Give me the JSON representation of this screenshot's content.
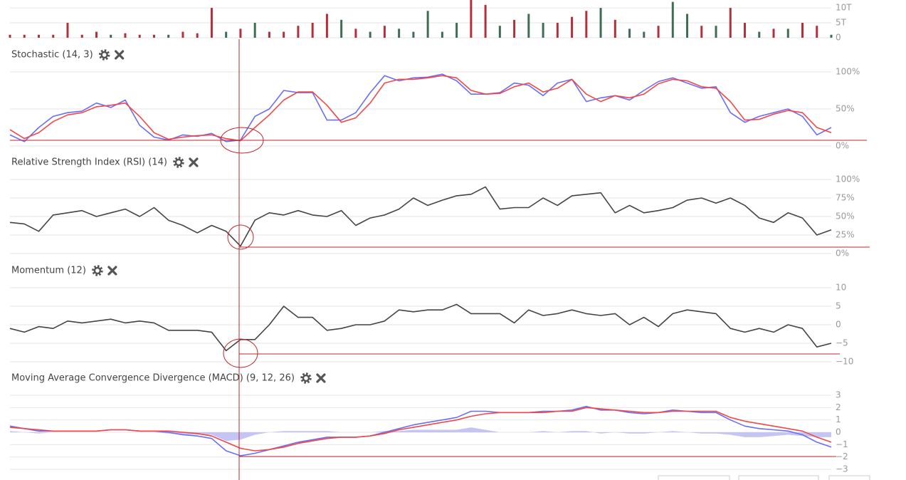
{
  "chart_data": [
    {
      "type": "bar",
      "ylim": [
        0,
        12.4
      ],
      "yticks": [
        {
          "value": 0,
          "label": "0"
        },
        {
          "value": 5,
          "label": "5T"
        },
        {
          "value": 10,
          "label": "10T"
        }
      ],
      "grid": true,
      "values": [
        1,
        1,
        1,
        1,
        5,
        1,
        2,
        1,
        1.5,
        1,
        1,
        1,
        2,
        1.5,
        10,
        2,
        3,
        5,
        2,
        2,
        4,
        5,
        8,
        6,
        3,
        2,
        4,
        3,
        2,
        9,
        2,
        5,
        13,
        11,
        4,
        6,
        8,
        5,
        5,
        7,
        9,
        10,
        6,
        3,
        2,
        4,
        12,
        8,
        4,
        4,
        10,
        5,
        2,
        3,
        3,
        5,
        4,
        1
      ],
      "colors": [
        "#b3303b",
        "#b3303b",
        "#b3303b",
        "#b3303b",
        "#b3303b",
        "#b3303b",
        "#b3303b",
        "#3d6e52",
        "#b3303b",
        "#b3303b",
        "#b3303b",
        "#3d6e52",
        "#b3303b",
        "#b3303b",
        "#b3303b",
        "#3d6e52",
        "#b3303b",
        "#3d6e52",
        "#b3303b",
        "#b3303b",
        "#b3303b",
        "#b3303b",
        "#b3303b",
        "#3d6e52",
        "#b3303b",
        "#3d6e52",
        "#b3303b",
        "#3d6e52",
        "#3d6e52",
        "#3d6e52",
        "#3d6e52",
        "#3d6e52",
        "#b3303b",
        "#b3303b",
        "#3d6e52",
        "#b3303b",
        "#3d6e52",
        "#3d6e52",
        "#b3303b",
        "#b3303b",
        "#b3303b",
        "#3d6e52",
        "#b3303b",
        "#3d6e52",
        "#3d6e52",
        "#b3303b",
        "#3d6e52",
        "#3d6e52",
        "#b3303b",
        "#3d6e52",
        "#b3303b",
        "#b3303b",
        "#3d6e52",
        "#b3303b",
        "#3d6e52",
        "#b3303b",
        "#b3303b",
        "#3d6e52"
      ]
    },
    {
      "type": "line",
      "title": "Stochastic (14, 3)",
      "ylim": [
        0,
        100
      ],
      "yticks": [
        {
          "value": 0,
          "label": "0%"
        },
        {
          "value": 50,
          "label": "50%"
        },
        {
          "value": 100,
          "label": "100%"
        }
      ],
      "grid": true,
      "series": [
        {
          "color": "#6b6ef5",
          "values": [
            15,
            6,
            25,
            40,
            45,
            47,
            58,
            52,
            62,
            28,
            12,
            8,
            15,
            13,
            17,
            6,
            8,
            40,
            50,
            75,
            72,
            72,
            35,
            35,
            45,
            72,
            95,
            88,
            92,
            93,
            97,
            88,
            70,
            70,
            72,
            85,
            82,
            68,
            85,
            90,
            60,
            65,
            68,
            62,
            75,
            87,
            92,
            85,
            78,
            80,
            45,
            32,
            40,
            45,
            50,
            40,
            15,
            25
          ]
        },
        {
          "color": "#f04848",
          "values": [
            22,
            10,
            18,
            33,
            42,
            45,
            53,
            55,
            58,
            40,
            18,
            9,
            12,
            14,
            15,
            10,
            7,
            25,
            42,
            62,
            73,
            73,
            55,
            32,
            38,
            58,
            85,
            90,
            90,
            92,
            95,
            92,
            75,
            70,
            71,
            80,
            85,
            73,
            78,
            90,
            70,
            60,
            68,
            65,
            70,
            84,
            90,
            88,
            80,
            78,
            60,
            35,
            36,
            43,
            48,
            45,
            25,
            18
          ]
        }
      ]
    },
    {
      "type": "line",
      "title": "Relative Strength Index (RSI) (14)",
      "ylim": [
        0,
        100
      ],
      "yticks": [
        {
          "value": 0,
          "label": "0%"
        },
        {
          "value": 25,
          "label": "25%"
        },
        {
          "value": 50,
          "label": "50%"
        },
        {
          "value": 75,
          "label": "75%"
        },
        {
          "value": 100,
          "label": "100%"
        }
      ],
      "grid": true,
      "series": [
        {
          "color": "#444444",
          "values": [
            42,
            40,
            30,
            52,
            55,
            58,
            50,
            55,
            60,
            50,
            62,
            45,
            38,
            28,
            38,
            30,
            10,
            45,
            55,
            52,
            58,
            52,
            50,
            58,
            38,
            48,
            52,
            60,
            75,
            65,
            72,
            78,
            80,
            90,
            60,
            62,
            62,
            75,
            65,
            78,
            80,
            82,
            55,
            65,
            55,
            58,
            62,
            72,
            75,
            68,
            75,
            65,
            48,
            42,
            55,
            48,
            25,
            32
          ]
        }
      ]
    },
    {
      "type": "line",
      "title": "Momentum (12)",
      "ylim": [
        -10,
        10
      ],
      "yticks": [
        {
          "value": -10,
          "label": "−10"
        },
        {
          "value": -5,
          "label": "−5"
        },
        0,
        5,
        10
      ],
      "grid": true,
      "series": [
        {
          "color": "#444444",
          "values": [
            -1,
            -2,
            -0.5,
            -1,
            1,
            0.5,
            1,
            1.5,
            0.5,
            1,
            0.5,
            -1.5,
            -1.5,
            -1.5,
            -2,
            -7,
            -4,
            -4,
            0,
            5,
            2,
            2,
            -1.5,
            -1,
            0,
            0,
            1,
            4,
            3.5,
            4,
            4,
            5.5,
            3,
            3,
            3,
            0.5,
            4,
            2.5,
            3,
            4,
            3,
            2.5,
            3,
            0,
            2,
            -0.5,
            3,
            4,
            3.5,
            3,
            -1,
            -2,
            -1,
            -2,
            0,
            -1,
            -6,
            -5
          ]
        }
      ]
    },
    {
      "type": "line",
      "title": "Moving Average Convergence Divergence (MACD) (9, 12, 26)",
      "ylim": [
        -3,
        3
      ],
      "yticks": [
        {
          "value": -3,
          "label": "−3"
        },
        {
          "value": -2,
          "label": "−2"
        },
        {
          "value": -1,
          "label": "−1"
        },
        0,
        1,
        2,
        3
      ],
      "grid": true,
      "series": [
        {
          "kind": "area",
          "color": "#c5c5f5",
          "values": [
            0.1,
            0,
            -0.1,
            0,
            0,
            0,
            0,
            0,
            0,
            0,
            0,
            -0.1,
            -0.2,
            -0.2,
            -0.2,
            -0.7,
            -0.6,
            -0.2,
            0,
            0.1,
            0.1,
            0.1,
            0.1,
            0,
            0,
            0,
            0.1,
            0.1,
            0.2,
            0.2,
            0.2,
            0.2,
            0.4,
            0.2,
            0,
            0,
            0,
            0.1,
            0,
            0.1,
            0.1,
            -0.1,
            0,
            -0.1,
            -0.1,
            0,
            0.1,
            0,
            -0.1,
            -0.1,
            -0.2,
            -0.4,
            -0.4,
            -0.3,
            -0.2,
            -0.3,
            -0.4,
            -0.4
          ]
        },
        {
          "color": "#6b6ef5",
          "values": [
            0.5,
            0.3,
            0.1,
            0.1,
            0.1,
            0.1,
            0.1,
            0.2,
            0.2,
            0.1,
            0.1,
            0,
            -0.2,
            -0.3,
            -0.5,
            -1.5,
            -1.9,
            -1.7,
            -1.4,
            -1.1,
            -0.8,
            -0.6,
            -0.4,
            -0.4,
            -0.4,
            -0.3,
            0,
            0.3,
            0.6,
            0.8,
            1,
            1.2,
            1.7,
            1.7,
            1.6,
            1.6,
            1.6,
            1.7,
            1.7,
            1.8,
            2.1,
            1.8,
            1.8,
            1.6,
            1.5,
            1.6,
            1.8,
            1.7,
            1.6,
            1.6,
            1,
            0.5,
            0.3,
            0.2,
            0.1,
            -0.2,
            -0.8,
            -1.2
          ]
        },
        {
          "color": "#f04848",
          "values": [
            0.4,
            0.3,
            0.2,
            0.1,
            0.1,
            0.1,
            0.1,
            0.2,
            0.2,
            0.1,
            0.1,
            0.1,
            0,
            -0.1,
            -0.3,
            -0.8,
            -1.3,
            -1.5,
            -1.4,
            -1.2,
            -0.9,
            -0.7,
            -0.5,
            -0.4,
            -0.4,
            -0.3,
            -0.1,
            0.2,
            0.4,
            0.6,
            0.8,
            1,
            1.3,
            1.5,
            1.6,
            1.6,
            1.6,
            1.6,
            1.7,
            1.7,
            2,
            1.9,
            1.8,
            1.7,
            1.6,
            1.6,
            1.7,
            1.7,
            1.7,
            1.7,
            1.2,
            0.9,
            0.7,
            0.5,
            0.3,
            0.1,
            -0.4,
            -0.8
          ]
        }
      ]
    }
  ]
}
